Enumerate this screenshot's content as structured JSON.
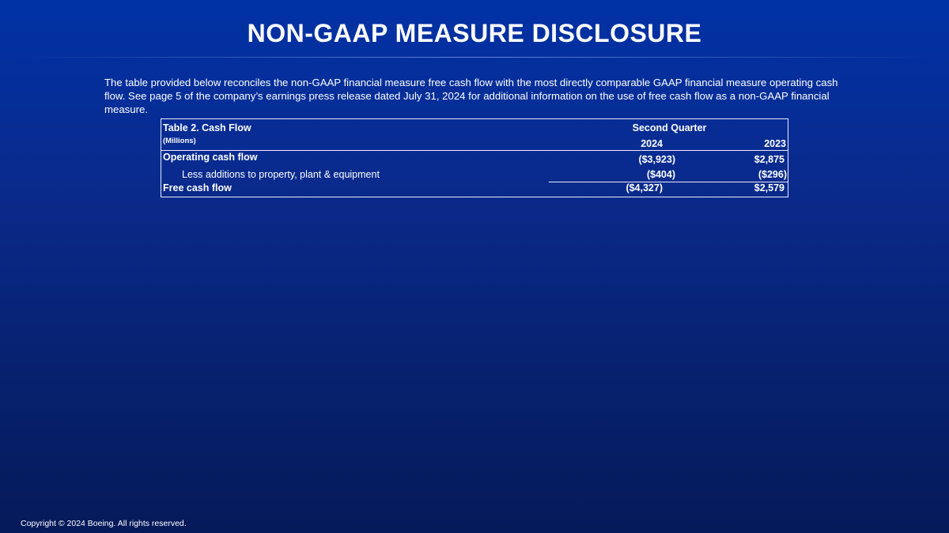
{
  "title": "NON-GAAP MEASURE DISCLOSURE",
  "intro": "The table provided below reconciles the non-GAAP financial measure free cash flow with the most directly comparable GAAP financial measure operating cash flow. See page 5 of the company’s earnings press release dated July 31, 2024 for additional information on the use of free cash flow as a non-GAAP financial measure.",
  "table": {
    "caption": "Table 2. Cash Flow",
    "units": "(Millions)",
    "period": "Second Quarter",
    "columns": [
      "2024",
      "2023"
    ],
    "rows": [
      {
        "label": "Operating cash flow",
        "values": [
          "($3,923)",
          "$2,875"
        ]
      },
      {
        "label": "Less additions to property, plant & equipment",
        "values": [
          "($404)",
          "($296)"
        ]
      },
      {
        "label": "Free cash flow",
        "values": [
          "($4,327)",
          "$2,579"
        ]
      }
    ]
  },
  "copyright": "Copyright © 2024 Boeing. All rights reserved."
}
